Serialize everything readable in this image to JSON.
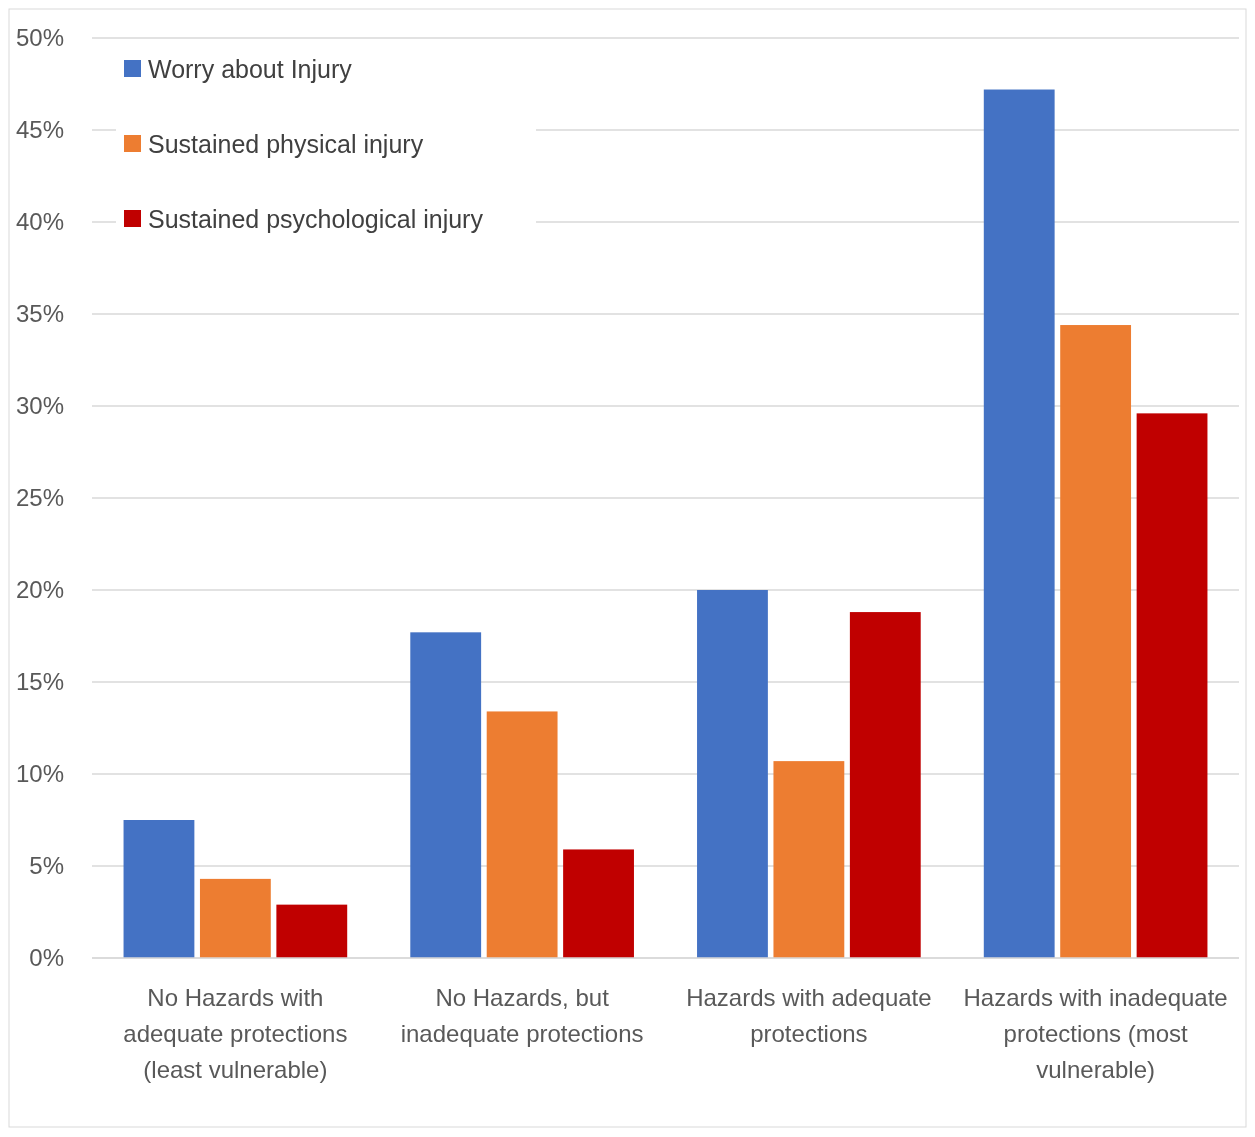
{
  "chart_data": {
    "type": "bar",
    "categories": [
      "No Hazards with adequate protections (least vulnerable)",
      "No Hazards, but inadequate protections",
      "Hazards with adequate protections",
      "Hazards with inadequate protections (most vulnerable)"
    ],
    "series": [
      {
        "name": "Worry about Injury",
        "color": "#4472c4",
        "values": [
          7.5,
          17.7,
          20.0,
          47.2
        ]
      },
      {
        "name": "Sustained physical injury",
        "color": "#ed7d31",
        "values": [
          4.3,
          13.4,
          10.7,
          34.4
        ]
      },
      {
        "name": "Sustained psychological injury",
        "color": "#c00000",
        "values": [
          2.9,
          5.9,
          18.8,
          29.6
        ]
      }
    ],
    "ylim": [
      0,
      50
    ],
    "yticks": [
      {
        "value": 0,
        "label": "0%"
      },
      {
        "value": 5,
        "label": "5%"
      },
      {
        "value": 10,
        "label": "10%"
      },
      {
        "value": 15,
        "label": "15%"
      },
      {
        "value": 20,
        "label": "20%"
      },
      {
        "value": 25,
        "label": "25%"
      },
      {
        "value": 30,
        "label": "30%"
      },
      {
        "value": 35,
        "label": "35%"
      },
      {
        "value": 40,
        "label": "40%"
      },
      {
        "value": 45,
        "label": "45%"
      },
      {
        "value": 50,
        "label": "50%"
      }
    ],
    "grid": "y",
    "legend": "top left"
  }
}
